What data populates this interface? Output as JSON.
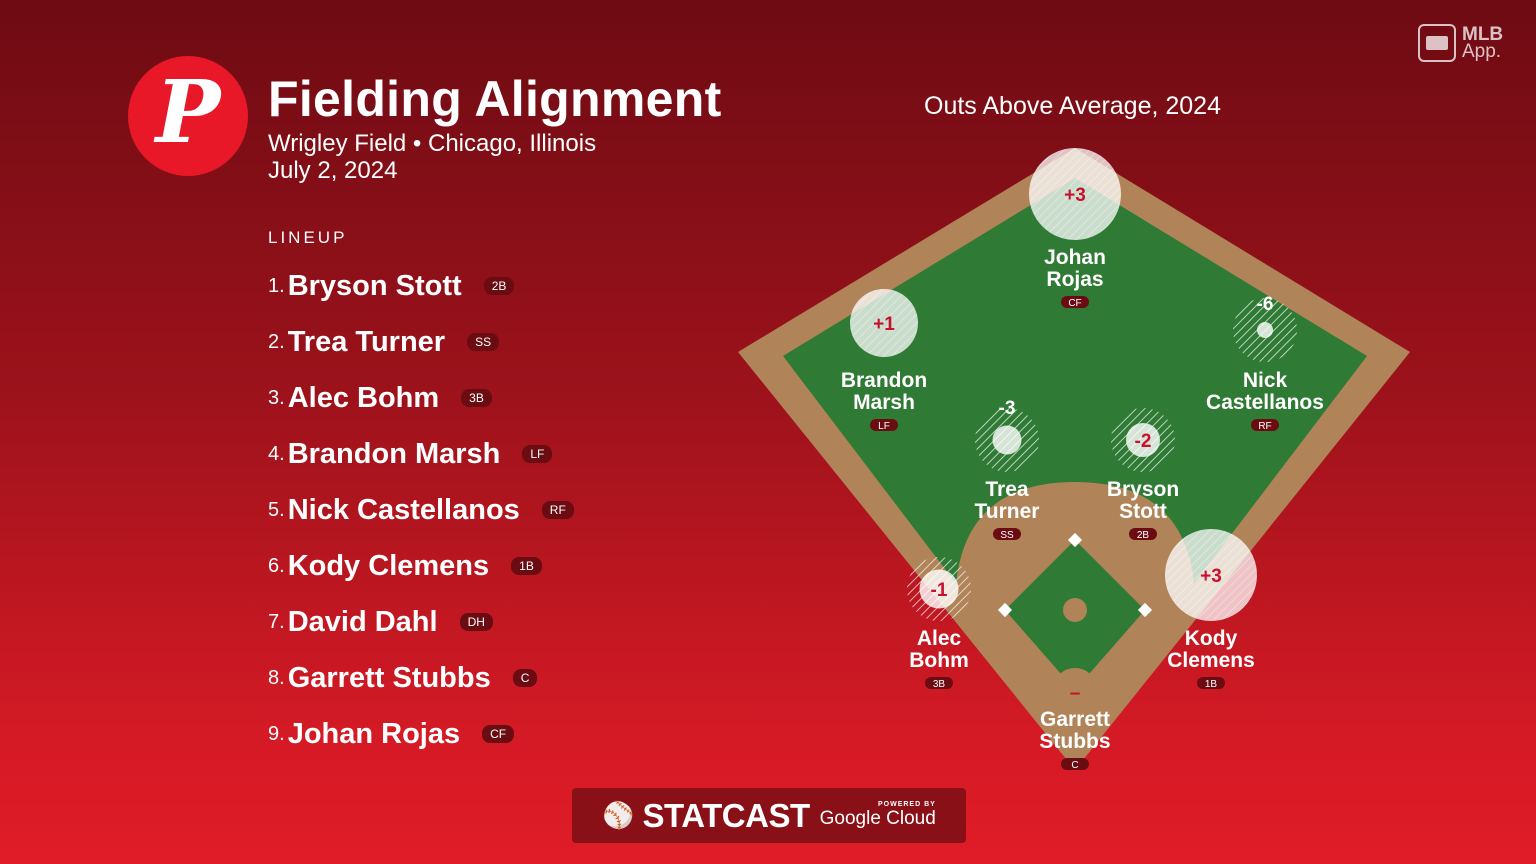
{
  "header": {
    "logo_letter": "P",
    "title": "Fielding Alignment",
    "subtitle": "Wrigley Field • Chicago, Illinois",
    "date": "July 2, 2024"
  },
  "lineup": {
    "heading": "LINEUP",
    "items": [
      {
        "num": "1.",
        "name": "Bryson Stott",
        "pos": "2B"
      },
      {
        "num": "2.",
        "name": "Trea Turner",
        "pos": "SS"
      },
      {
        "num": "3.",
        "name": "Alec Bohm",
        "pos": "3B"
      },
      {
        "num": "4.",
        "name": "Brandon Marsh",
        "pos": "LF"
      },
      {
        "num": "5.",
        "name": "Nick Castellanos",
        "pos": "RF"
      },
      {
        "num": "6.",
        "name": "Kody Clemens",
        "pos": "1B"
      },
      {
        "num": "7.",
        "name": "David Dahl",
        "pos": "DH"
      },
      {
        "num": "8.",
        "name": "Garrett Stubbs",
        "pos": "C"
      },
      {
        "num": "9.",
        "name": "Johan Rojas",
        "pos": "CF"
      }
    ]
  },
  "branding": {
    "mlb_app_line1": "MLB",
    "mlb_app_line2": "App.",
    "statcast_word": "STATCAST",
    "powered_by": "POWERED BY",
    "google_cloud": "Google Cloud"
  },
  "field": {
    "title": "Outs Above Average, 2024",
    "players": [
      {
        "key": "cf",
        "first": "Johan",
        "last": "Rojas",
        "pos": "CF",
        "oaa": "+3",
        "oaa_value": 3
      },
      {
        "key": "lf",
        "first": "Brandon",
        "last": "Marsh",
        "pos": "LF",
        "oaa": "+1",
        "oaa_value": 1
      },
      {
        "key": "rf",
        "first": "Nick",
        "last": "Castellanos",
        "pos": "RF",
        "oaa": "-6",
        "oaa_value": -6
      },
      {
        "key": "ss",
        "first": "Trea",
        "last": "Turner",
        "pos": "SS",
        "oaa": "-3",
        "oaa_value": -3
      },
      {
        "key": "2b",
        "first": "Bryson",
        "last": "Stott",
        "pos": "2B",
        "oaa": "-2",
        "oaa_value": -2
      },
      {
        "key": "3b",
        "first": "Alec",
        "last": "Bohm",
        "pos": "3B",
        "oaa": "-1",
        "oaa_value": -1
      },
      {
        "key": "1b",
        "first": "Kody",
        "last": "Clemens",
        "pos": "1B",
        "oaa": "+3",
        "oaa_value": 3
      },
      {
        "key": "c",
        "first": "Garrett",
        "last": "Stubbs",
        "pos": "C",
        "oaa": "–",
        "oaa_value": null
      }
    ]
  },
  "colors": {
    "grass": "#2f7a34",
    "dirt": "#b08458",
    "badge": "#6a0c12",
    "oaa_text": "#c8102e"
  }
}
